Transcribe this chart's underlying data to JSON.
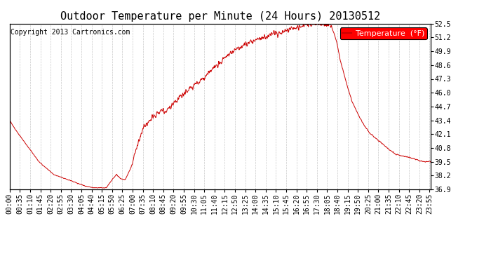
{
  "title": "Outdoor Temperature per Minute (24 Hours) 20130512",
  "copyright_text": "Copyright 2013 Cartronics.com",
  "legend_label": "Temperature  (°F)",
  "line_color": "#cc0000",
  "background_color": "#ffffff",
  "grid_color": "#bbbbbb",
  "ylabel_right_ticks": [
    36.9,
    38.2,
    39.5,
    40.8,
    42.1,
    43.4,
    44.7,
    46.0,
    47.3,
    48.6,
    49.9,
    51.2,
    52.5
  ],
  "ylim": [
    36.9,
    52.5
  ],
  "xlim_minutes": [
    0,
    1439
  ],
  "xtick_labels": [
    "00:00",
    "00:35",
    "01:10",
    "01:45",
    "02:20",
    "02:55",
    "03:30",
    "04:05",
    "04:40",
    "05:15",
    "05:50",
    "06:25",
    "07:00",
    "07:35",
    "08:10",
    "08:45",
    "09:20",
    "09:55",
    "10:30",
    "11:05",
    "11:40",
    "12:15",
    "12:50",
    "13:25",
    "14:00",
    "14:35",
    "15:10",
    "15:45",
    "16:20",
    "16:55",
    "17:30",
    "18:05",
    "18:40",
    "19:15",
    "19:50",
    "20:25",
    "21:00",
    "21:35",
    "22:10",
    "22:45",
    "23:20",
    "23:55"
  ],
  "xtick_minutes": [
    0,
    35,
    70,
    105,
    140,
    175,
    210,
    245,
    280,
    315,
    350,
    385,
    420,
    455,
    490,
    525,
    560,
    595,
    630,
    665,
    700,
    735,
    770,
    805,
    840,
    875,
    910,
    945,
    980,
    1015,
    1050,
    1085,
    1120,
    1155,
    1190,
    1225,
    1260,
    1295,
    1330,
    1365,
    1400,
    1435
  ],
  "title_fontsize": 11,
  "axis_fontsize": 7,
  "legend_fontsize": 8,
  "copyright_fontsize": 7
}
